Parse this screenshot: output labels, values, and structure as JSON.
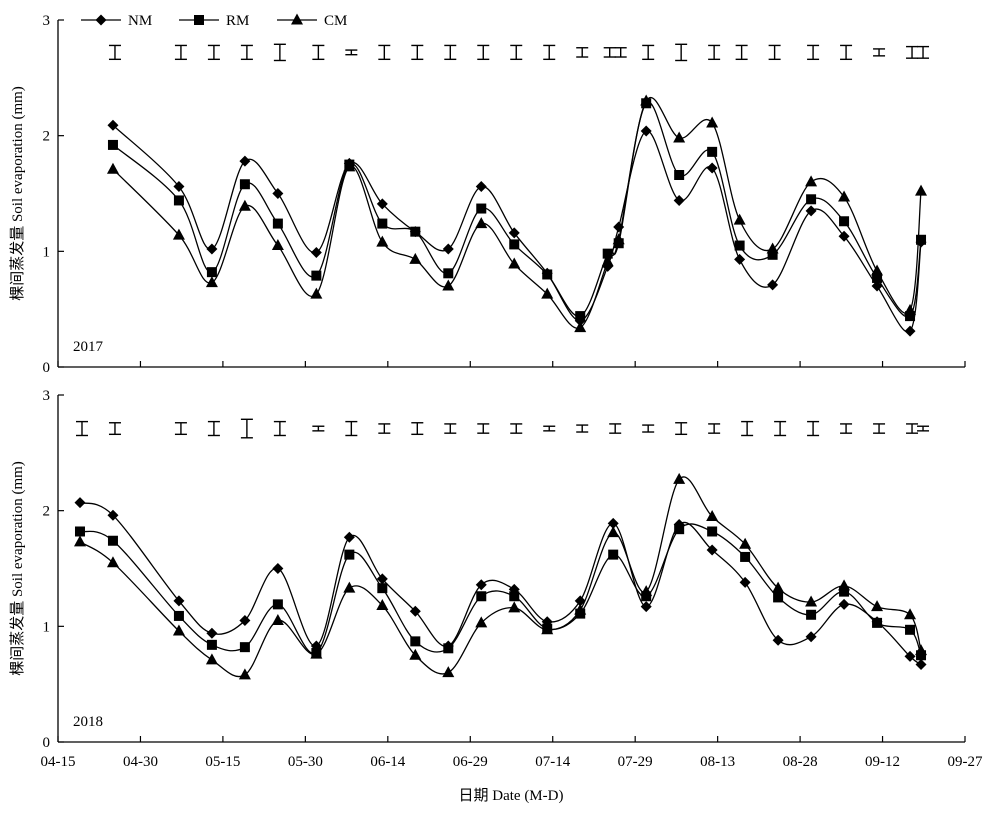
{
  "figure": {
    "xlabel": "日期 Date (M-D)",
    "x_tick_labels": [
      "04-15",
      "04-30",
      "05-15",
      "05-30",
      "06-14",
      "06-29",
      "07-14",
      "07-29",
      "08-13",
      "08-28",
      "09-12",
      "09-27"
    ]
  },
  "legend": {
    "placement": "top-left",
    "entries": [
      {
        "name": "NM",
        "marker": "diamond"
      },
      {
        "name": "RM",
        "marker": "square"
      },
      {
        "name": "CM",
        "marker": "triangle"
      }
    ]
  },
  "chart_data": [
    {
      "type": "line",
      "panel_label": "2017",
      "ylabel": "棵间蒸发量 Soil evaporation (mm)",
      "ylim": [
        0,
        3
      ],
      "y_ticks": [
        "0",
        "1",
        "2",
        "3"
      ],
      "x_range": [
        "04-15",
        "09-27"
      ],
      "x": [
        "04-25",
        "05-07",
        "05-13",
        "05-19",
        "05-25",
        "06-01",
        "06-07",
        "06-13",
        "06-19",
        "06-25",
        "07-01",
        "07-07",
        "07-13",
        "07-19",
        "07-24",
        "07-26",
        "07-31",
        "08-06",
        "08-12",
        "08-17",
        "08-23",
        "08-30",
        "09-05",
        "09-11",
        "09-17",
        "09-19"
      ],
      "series": [
        {
          "name": "NM",
          "values": [
            2.09,
            1.56,
            1.02,
            1.78,
            1.5,
            0.99,
            1.76,
            1.41,
            1.17,
            1.02,
            1.56,
            1.16,
            0.81,
            0.4,
            0.87,
            1.21,
            2.04,
            1.44,
            1.72,
            0.93,
            0.71,
            1.35,
            1.13,
            0.7,
            0.31,
            1.08
          ]
        },
        {
          "name": "RM",
          "values": [
            1.92,
            1.44,
            0.82,
            1.58,
            1.24,
            0.79,
            1.75,
            1.24,
            1.17,
            0.81,
            1.37,
            1.06,
            0.8,
            0.44,
            0.98,
            1.07,
            2.28,
            1.66,
            1.86,
            1.05,
            0.97,
            1.45,
            1.26,
            0.77,
            0.44,
            1.1
          ]
        },
        {
          "name": "CM",
          "values": [
            1.71,
            1.14,
            0.73,
            1.39,
            1.05,
            0.63,
            1.73,
            1.08,
            0.93,
            0.7,
            1.24,
            0.89,
            0.63,
            0.34,
            0.91,
            1.1,
            2.3,
            1.98,
            2.11,
            1.27,
            1.02,
            1.6,
            1.47,
            0.83,
            0.49,
            1.52
          ]
        }
      ],
      "error_bar_center": 2.72,
      "error_bar_half_height": [
        0.06,
        0.06,
        0.06,
        0.06,
        0.07,
        0.06,
        0.02,
        0.06,
        0.06,
        0.06,
        0.06,
        0.06,
        0.06,
        0.04,
        0.04,
        0.04,
        0.06,
        0.07,
        0.06,
        0.06,
        0.06,
        0.06,
        0.06,
        0.03,
        0.05,
        0.05
      ]
    },
    {
      "type": "line",
      "panel_label": "2018",
      "ylabel": "棵间蒸发量 Soil evaporation (mm)",
      "ylim": [
        0,
        3
      ],
      "y_ticks": [
        "0",
        "1",
        "2",
        "3"
      ],
      "x_range": [
        "04-15",
        "09-27"
      ],
      "x": [
        "04-19",
        "04-25",
        "05-07",
        "05-13",
        "05-19",
        "05-25",
        "06-01",
        "06-07",
        "06-13",
        "06-19",
        "06-25",
        "07-01",
        "07-07",
        "07-13",
        "07-19",
        "07-25",
        "07-31",
        "08-06",
        "08-12",
        "08-18",
        "08-24",
        "08-30",
        "09-05",
        "09-11",
        "09-17",
        "09-19"
      ],
      "series": [
        {
          "name": "NM",
          "values": [
            2.07,
            1.96,
            1.22,
            0.94,
            1.05,
            1.5,
            0.83,
            1.77,
            1.41,
            1.13,
            0.83,
            1.36,
            1.32,
            1.04,
            1.22,
            1.89,
            1.17,
            1.88,
            1.66,
            1.38,
            0.88,
            0.91,
            1.19,
            1.04,
            0.74,
            0.67
          ]
        },
        {
          "name": "RM",
          "values": [
            1.82,
            1.74,
            1.09,
            0.84,
            0.82,
            1.19,
            0.77,
            1.62,
            1.33,
            0.87,
            0.81,
            1.26,
            1.26,
            0.98,
            1.11,
            1.62,
            1.26,
            1.84,
            1.82,
            1.6,
            1.25,
            1.1,
            1.3,
            1.03,
            0.97,
            0.75
          ]
        },
        {
          "name": "CM",
          "values": [
            1.73,
            1.55,
            0.96,
            0.71,
            0.58,
            1.05,
            0.76,
            1.33,
            1.18,
            0.75,
            0.6,
            1.03,
            1.16,
            0.97,
            1.14,
            1.81,
            1.3,
            2.27,
            1.95,
            1.71,
            1.33,
            1.21,
            1.35,
            1.17,
            1.1,
            0.79
          ]
        }
      ],
      "error_bar_center": 2.71,
      "error_bar_half_height": [
        0.06,
        0.05,
        0.05,
        0.06,
        0.08,
        0.06,
        0.02,
        0.06,
        0.04,
        0.05,
        0.04,
        0.04,
        0.04,
        0.02,
        0.03,
        0.04,
        0.03,
        0.05,
        0.04,
        0.06,
        0.06,
        0.06,
        0.04,
        0.04,
        0.04,
        0.02
      ]
    }
  ]
}
